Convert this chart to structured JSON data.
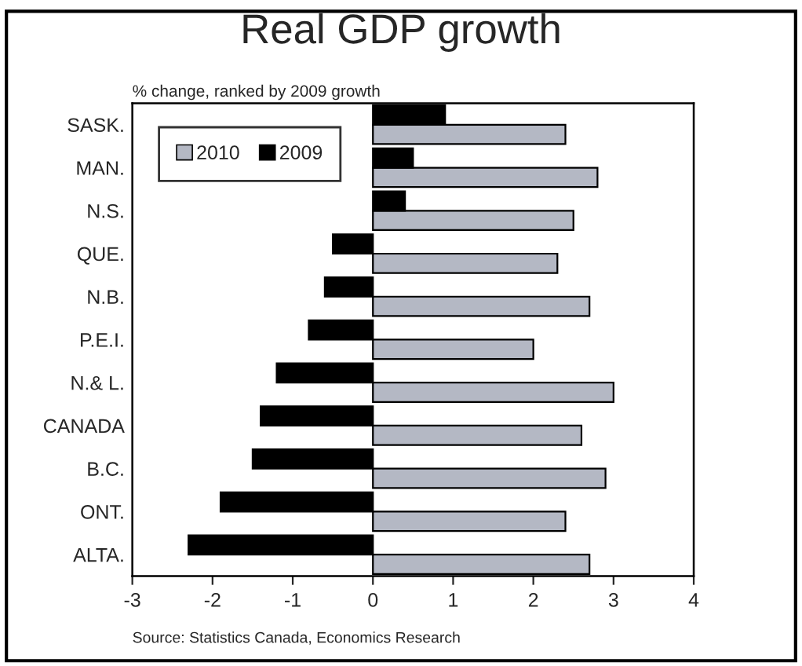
{
  "chart_data": {
    "type": "bar",
    "orientation": "horizontal",
    "title": "Real GDP growth",
    "subtitle": "% change, ranked by 2009 growth",
    "categories": [
      "SASK.",
      "MAN.",
      "N.S.",
      "QUE.",
      "N.B.",
      "P.E.I.",
      "N.& L.",
      "CANADA",
      "B.C.",
      "ONT.",
      "ALTA."
    ],
    "series": [
      {
        "name": "2010",
        "color": "#b4b8c4",
        "values": [
          2.4,
          2.8,
          2.5,
          2.3,
          2.7,
          2.0,
          3.0,
          2.6,
          2.9,
          2.4,
          2.7
        ]
      },
      {
        "name": "2009",
        "color": "#000000",
        "values": [
          0.9,
          0.5,
          0.4,
          -0.5,
          -0.6,
          -0.8,
          -1.2,
          -1.4,
          -1.5,
          -1.9,
          -2.3
        ]
      }
    ],
    "xlim": [
      -3,
      4
    ],
    "xticks": [
      -3,
      -2,
      -1,
      0,
      1,
      2,
      3,
      4
    ],
    "grid": false,
    "legend": "top left",
    "annotations": [
      "Source: Statistics Canada, Economics Research"
    ]
  }
}
